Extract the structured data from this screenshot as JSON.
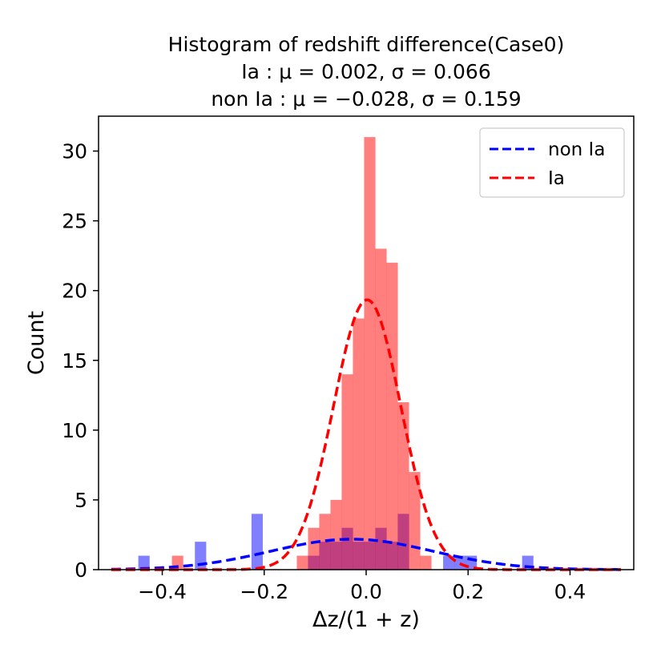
{
  "chart_data": {
    "type": "histogram",
    "title_lines": [
      "Histogram of redshift difference(Case0)",
      "Ia : μ = 0.002,  σ = 0.066",
      "non Ia : μ = −0.028,  σ = 0.159"
    ],
    "xlabel": "Δz/(1 + z)",
    "ylabel": "Count",
    "xlim": [
      -0.525,
      0.525
    ],
    "ylim": [
      0,
      32.5
    ],
    "xticks": [
      -0.4,
      -0.2,
      0.0,
      0.2,
      0.4
    ],
    "xtick_labels": [
      "−0.4",
      "−0.2",
      "0.0",
      "0.2",
      "0.4"
    ],
    "yticks": [
      0,
      5,
      10,
      15,
      20,
      25,
      30
    ],
    "ytick_labels": [
      "0",
      "5",
      "10",
      "15",
      "20",
      "25",
      "30"
    ],
    "legend_position": "top-right",
    "bin_width": 0.0222,
    "series": [
      {
        "name": "non Ia histogram",
        "color": "#0000ff",
        "opacity": 0.5,
        "bins": [
          {
            "x0": -0.447,
            "count": 1
          },
          {
            "x0": -0.336,
            "count": 2
          },
          {
            "x0": -0.225,
            "count": 4
          },
          {
            "x0": -0.114,
            "count": 1
          },
          {
            "x0": -0.092,
            "count": 2
          },
          {
            "x0": -0.07,
            "count": 2
          },
          {
            "x0": -0.048,
            "count": 3
          },
          {
            "x0": -0.026,
            "count": 2
          },
          {
            "x0": -0.004,
            "count": 2
          },
          {
            "x0": 0.018,
            "count": 3
          },
          {
            "x0": 0.04,
            "count": 2
          },
          {
            "x0": 0.062,
            "count": 4
          },
          {
            "x0": 0.151,
            "count": 1
          },
          {
            "x0": 0.173,
            "count": 1
          },
          {
            "x0": 0.195,
            "count": 1
          },
          {
            "x0": 0.306,
            "count": 1
          }
        ]
      },
      {
        "name": "Ia histogram",
        "color": "#ff0000",
        "opacity": 0.5,
        "bins": [
          {
            "x0": -0.381,
            "count": 1
          },
          {
            "x0": -0.136,
            "count": 1
          },
          {
            "x0": -0.114,
            "count": 3
          },
          {
            "x0": -0.092,
            "count": 4
          },
          {
            "x0": -0.07,
            "count": 5
          },
          {
            "x0": -0.048,
            "count": 14
          },
          {
            "x0": -0.026,
            "count": 18
          },
          {
            "x0": -0.004,
            "count": 31
          },
          {
            "x0": 0.018,
            "count": 23
          },
          {
            "x0": 0.04,
            "count": 22
          },
          {
            "x0": 0.062,
            "count": 12
          },
          {
            "x0": 0.084,
            "count": 7
          },
          {
            "x0": 0.106,
            "count": 1
          }
        ]
      }
    ],
    "fits": [
      {
        "name": "non Ia",
        "label": "non Ia",
        "color": "#0000ff",
        "mu": -0.028,
        "sigma": 0.159,
        "scale": 0.87
      },
      {
        "name": "Ia",
        "label": "Ia",
        "color": "#ff0000",
        "mu": 0.002,
        "sigma": 0.066,
        "scale": 3.2
      }
    ],
    "fit_range": [
      -0.5,
      0.5
    ]
  }
}
